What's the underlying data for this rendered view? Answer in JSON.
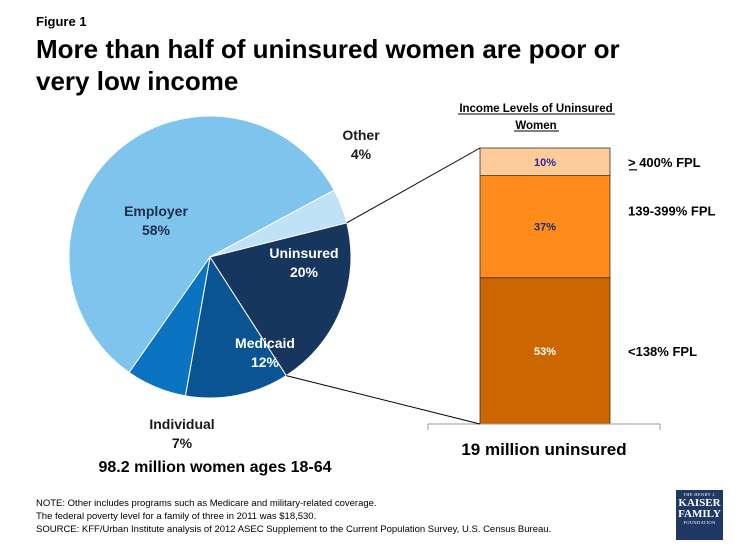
{
  "figure_label": "Figure 1",
  "title": "More than half of uninsured women are poor or very low income",
  "chart_data": [
    {
      "type": "pie",
      "caption": "98.2 million women ages 18-64",
      "slices": [
        {
          "name": "Employer",
          "value": 58,
          "label": "58%",
          "color": "#7fc4ec",
          "text_color": "#1f2d4d"
        },
        {
          "name": "Other",
          "value": 4,
          "label": "4%",
          "color": "#bfe2f6",
          "text_color": "#1a1a1a"
        },
        {
          "name": "Uninsured",
          "value": 20,
          "label": "20%",
          "color": "#17365d",
          "text_color": "#ffffff"
        },
        {
          "name": "Medicaid",
          "value": 12,
          "label": "12%",
          "color": "#0a5493",
          "text_color": "#ffffff"
        },
        {
          "name": "Individual",
          "value": 7,
          "label": "7%",
          "color": "#0a73c2",
          "text_color": "#1a1a1a"
        }
      ]
    },
    {
      "type": "bar",
      "stacked": true,
      "title": "Income Levels of Uninsured Women",
      "caption": "19 million uninsured",
      "segments": [
        {
          "name": "<138% FPL",
          "value": 53,
          "label": "53%",
          "color": "#cc6600",
          "text_color": "#ffffff"
        },
        {
          "name": "139-399% FPL",
          "value": 37,
          "label": "37%",
          "color": "#ff8c1a",
          "text_color": "#1f2d6b"
        },
        {
          "name": "≥ 400% FPL",
          "value": 10,
          "label": "10%",
          "color": "#ffcc99",
          "text_color": "#2a2aa0"
        }
      ]
    }
  ],
  "notes": [
    "NOTE: Other  includes programs such as Medicare and military-related coverage.",
    "The federal poverty level for a family of three in 2011 was $18,530.",
    "SOURCE: KFF/Urban Institute analysis of 2012 ASEC Supplement to the Current Population Survey, U.S. Census Bureau."
  ],
  "logo": {
    "line1": "THE HENRY J.",
    "line2": "KAISER",
    "line3": "FAMILY",
    "line4": "FOUNDATION"
  }
}
